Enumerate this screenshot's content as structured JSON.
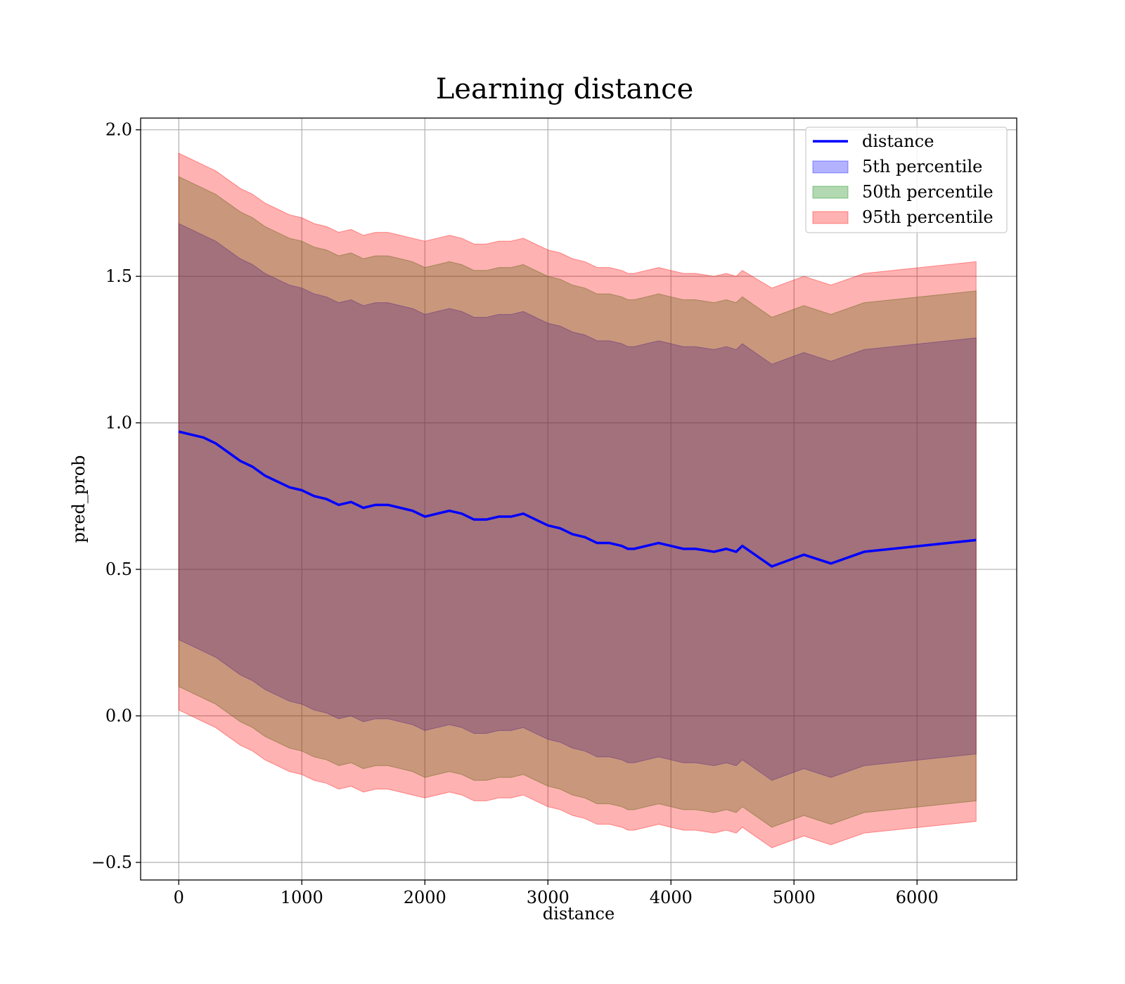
{
  "chart_data": {
    "type": "area",
    "title": "Learning distance",
    "xlabel": "distance",
    "ylabel": "pred_prob",
    "xlim": [
      -310,
      6810
    ],
    "ylim": [
      -0.56,
      2.04
    ],
    "xticks": [
      0,
      1000,
      2000,
      3000,
      4000,
      5000,
      6000
    ],
    "xtick_labels": [
      "0",
      "1000",
      "2000",
      "3000",
      "4000",
      "5000",
      "6000"
    ],
    "yticks": [
      -0.5,
      0.0,
      0.5,
      1.0,
      1.5,
      2.0
    ],
    "ytick_labels": [
      "−0.5",
      "0.0",
      "0.5",
      "1.0",
      "1.5",
      "2.0"
    ],
    "grid": true,
    "legend_position": "top-right",
    "x": [
      0,
      100,
      200,
      300,
      400,
      500,
      600,
      700,
      800,
      900,
      1000,
      1100,
      1200,
      1300,
      1400,
      1500,
      1600,
      1700,
      1800,
      1900,
      2000,
      2100,
      2200,
      2300,
      2400,
      2500,
      2600,
      2700,
      2800,
      2900,
      3000,
      3100,
      3200,
      3300,
      3400,
      3500,
      3600,
      3650,
      3700,
      3800,
      3900,
      4000,
      4100,
      4200,
      4350,
      4450,
      4530,
      4580,
      4820,
      5080,
      5300,
      5570,
      6480
    ],
    "series": [
      {
        "name": "distance",
        "kind": "line",
        "color": "#0000ff",
        "values": [
          0.97,
          0.96,
          0.95,
          0.93,
          0.9,
          0.87,
          0.85,
          0.82,
          0.8,
          0.78,
          0.77,
          0.75,
          0.74,
          0.72,
          0.73,
          0.71,
          0.72,
          0.72,
          0.71,
          0.7,
          0.68,
          0.69,
          0.7,
          0.69,
          0.67,
          0.67,
          0.68,
          0.68,
          0.69,
          0.67,
          0.65,
          0.64,
          0.62,
          0.61,
          0.59,
          0.59,
          0.58,
          0.57,
          0.57,
          0.58,
          0.59,
          0.58,
          0.57,
          0.57,
          0.56,
          0.57,
          0.56,
          0.58,
          0.51,
          0.55,
          0.52,
          0.56,
          0.6
        ]
      },
      {
        "name": "5th percentile",
        "kind": "band",
        "color": "#0000ff",
        "opacity": 0.3,
        "upper": [
          1.68,
          1.66,
          1.64,
          1.62,
          1.59,
          1.56,
          1.54,
          1.51,
          1.49,
          1.47,
          1.46,
          1.44,
          1.43,
          1.41,
          1.42,
          1.4,
          1.41,
          1.41,
          1.4,
          1.39,
          1.37,
          1.38,
          1.39,
          1.38,
          1.36,
          1.36,
          1.37,
          1.37,
          1.38,
          1.36,
          1.34,
          1.33,
          1.31,
          1.3,
          1.28,
          1.28,
          1.27,
          1.26,
          1.26,
          1.27,
          1.28,
          1.27,
          1.26,
          1.26,
          1.25,
          1.26,
          1.25,
          1.27,
          1.2,
          1.24,
          1.21,
          1.25,
          1.29
        ],
        "lower": [
          0.26,
          0.24,
          0.22,
          0.2,
          0.17,
          0.14,
          0.12,
          0.09,
          0.07,
          0.05,
          0.04,
          0.02,
          0.01,
          -0.01,
          0.0,
          -0.02,
          -0.01,
          -0.01,
          -0.02,
          -0.03,
          -0.05,
          -0.04,
          -0.03,
          -0.04,
          -0.06,
          -0.06,
          -0.05,
          -0.05,
          -0.04,
          -0.06,
          -0.08,
          -0.09,
          -0.11,
          -0.12,
          -0.14,
          -0.14,
          -0.15,
          -0.16,
          -0.16,
          -0.15,
          -0.14,
          -0.15,
          -0.16,
          -0.16,
          -0.17,
          -0.16,
          -0.17,
          -0.15,
          -0.22,
          -0.18,
          -0.21,
          -0.17,
          -0.13
        ]
      },
      {
        "name": "50th percentile",
        "kind": "band",
        "color": "#008000",
        "opacity": 0.3,
        "upper": [
          1.84,
          1.82,
          1.8,
          1.78,
          1.75,
          1.72,
          1.7,
          1.67,
          1.65,
          1.63,
          1.62,
          1.6,
          1.59,
          1.57,
          1.58,
          1.56,
          1.57,
          1.57,
          1.56,
          1.55,
          1.53,
          1.54,
          1.55,
          1.54,
          1.52,
          1.52,
          1.53,
          1.53,
          1.54,
          1.52,
          1.5,
          1.49,
          1.47,
          1.46,
          1.44,
          1.44,
          1.43,
          1.42,
          1.42,
          1.43,
          1.44,
          1.43,
          1.42,
          1.42,
          1.41,
          1.42,
          1.41,
          1.43,
          1.36,
          1.4,
          1.37,
          1.41,
          1.45
        ],
        "lower": [
          0.1,
          0.08,
          0.06,
          0.04,
          0.01,
          -0.02,
          -0.04,
          -0.07,
          -0.09,
          -0.11,
          -0.12,
          -0.14,
          -0.15,
          -0.17,
          -0.16,
          -0.18,
          -0.17,
          -0.17,
          -0.18,
          -0.19,
          -0.21,
          -0.2,
          -0.19,
          -0.2,
          -0.22,
          -0.22,
          -0.21,
          -0.21,
          -0.2,
          -0.22,
          -0.24,
          -0.25,
          -0.27,
          -0.28,
          -0.3,
          -0.3,
          -0.31,
          -0.32,
          -0.32,
          -0.31,
          -0.3,
          -0.31,
          -0.32,
          -0.32,
          -0.33,
          -0.32,
          -0.33,
          -0.31,
          -0.38,
          -0.34,
          -0.37,
          -0.33,
          -0.29
        ]
      },
      {
        "name": "95th percentile",
        "kind": "band",
        "color": "#ff0000",
        "opacity": 0.3,
        "upper": [
          1.92,
          1.9,
          1.88,
          1.86,
          1.83,
          1.8,
          1.78,
          1.75,
          1.73,
          1.71,
          1.7,
          1.68,
          1.67,
          1.65,
          1.66,
          1.64,
          1.65,
          1.65,
          1.64,
          1.63,
          1.62,
          1.63,
          1.64,
          1.63,
          1.61,
          1.61,
          1.62,
          1.62,
          1.63,
          1.61,
          1.59,
          1.58,
          1.56,
          1.55,
          1.53,
          1.53,
          1.52,
          1.51,
          1.51,
          1.52,
          1.53,
          1.52,
          1.51,
          1.51,
          1.5,
          1.51,
          1.5,
          1.52,
          1.46,
          1.5,
          1.47,
          1.51,
          1.55
        ],
        "lower": [
          0.02,
          0.0,
          -0.02,
          -0.04,
          -0.07,
          -0.1,
          -0.12,
          -0.15,
          -0.17,
          -0.19,
          -0.2,
          -0.22,
          -0.23,
          -0.25,
          -0.24,
          -0.26,
          -0.25,
          -0.25,
          -0.26,
          -0.27,
          -0.28,
          -0.27,
          -0.26,
          -0.27,
          -0.29,
          -0.29,
          -0.28,
          -0.28,
          -0.27,
          -0.29,
          -0.31,
          -0.32,
          -0.34,
          -0.35,
          -0.37,
          -0.37,
          -0.38,
          -0.39,
          -0.39,
          -0.38,
          -0.37,
          -0.38,
          -0.39,
          -0.39,
          -0.4,
          -0.39,
          -0.4,
          -0.38,
          -0.45,
          -0.41,
          -0.44,
          -0.4,
          -0.36
        ]
      }
    ]
  }
}
